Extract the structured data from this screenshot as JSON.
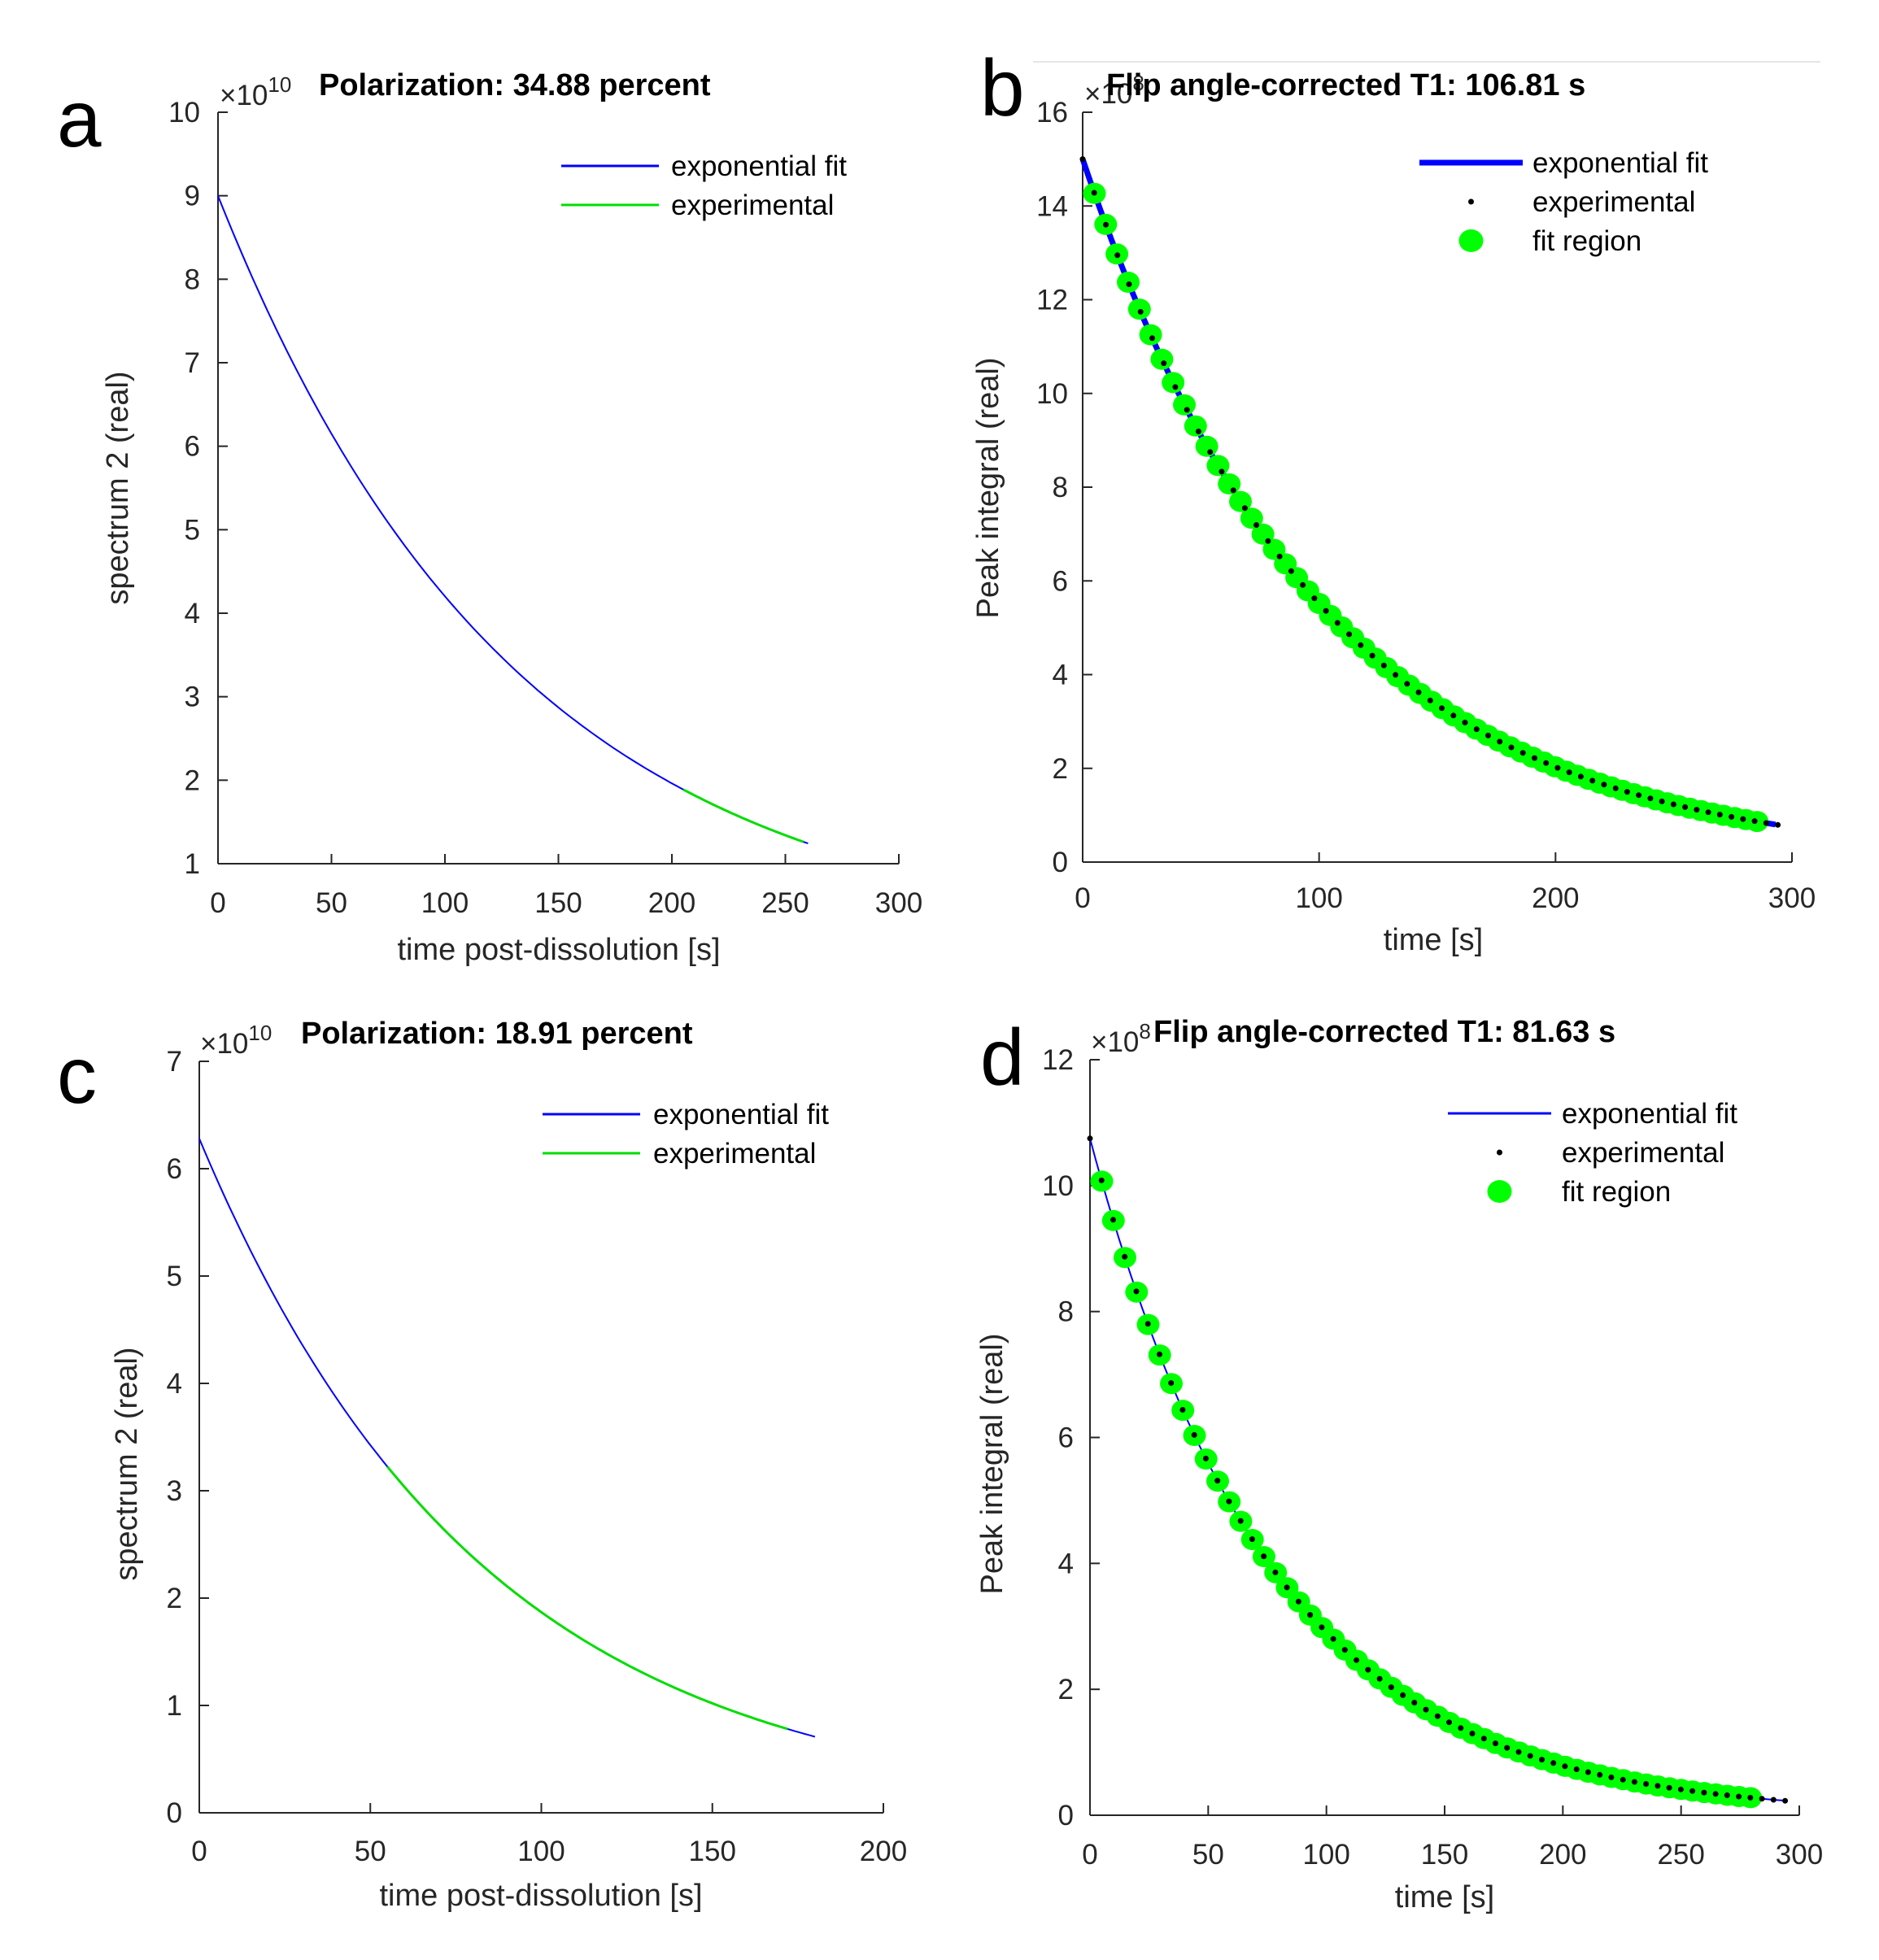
{
  "colors": {
    "fit": "#0000ff",
    "experimental": "#00dd00",
    "fit_region": "#00ff00",
    "dots": "#000000",
    "axis": "#262626"
  },
  "chart_data": [
    {
      "panel": "a",
      "type": "line",
      "title": "Polarization: 34.88 percent",
      "xlabel": "time post-dissolution [s]",
      "ylabel": "spectrum 2 (real)",
      "xlim": [
        0,
        300
      ],
      "ylim": [
        1,
        10
      ],
      "xticks": [
        "0",
        "50",
        "100",
        "150",
        "200",
        "250",
        "300"
      ],
      "yticks": [
        "1",
        "2",
        "3",
        "4",
        "5",
        "6",
        "7",
        "8",
        "9",
        "10"
      ],
      "y_exponent": "×10",
      "y_exponent_power": "10",
      "legend": [
        "exponential fit",
        "experimental"
      ],
      "model": {
        "kind": "exp",
        "a": 9.0,
        "tau": 131.3
      },
      "series": [
        {
          "name": "exponential fit",
          "style": "line",
          "x_range": [
            0,
            260
          ]
        },
        {
          "name": "experimental",
          "style": "line",
          "x_range": [
            205,
            258
          ]
        }
      ]
    },
    {
      "panel": "b",
      "type": "scatter",
      "title": "Flip angle-corrected T1: 106.81 s",
      "xlabel": "time [s]",
      "ylabel": "Peak integral (real)",
      "xlim": [
        0,
        300
      ],
      "ylim": [
        0,
        16
      ],
      "xticks": [
        "0",
        "100",
        "200",
        "300"
      ],
      "yticks": [
        "0",
        "2",
        "4",
        "6",
        "8",
        "10",
        "12",
        "14",
        "16"
      ],
      "y_exponent": "×10",
      "y_exponent_power": "8",
      "legend": [
        "exponential fit",
        "experimental",
        "fit region"
      ],
      "model": {
        "kind": "exp",
        "a": 15.0,
        "tau": 100.0
      },
      "series": [
        {
          "name": "exponential fit",
          "style": "thickline",
          "x_range": [
            0,
            293
          ]
        },
        {
          "name": "experimental",
          "style": "dots",
          "x_start": 0,
          "x_step": 4.9,
          "count": 61
        },
        {
          "name": "fit region",
          "style": "markers",
          "x_start": 5,
          "x_step": 4.75,
          "count": 60
        }
      ]
    },
    {
      "panel": "c",
      "type": "line",
      "title": "Polarization: 18.91 percent",
      "xlabel": "time post-dissolution [s]",
      "ylabel": "spectrum 2 (real)",
      "xlim": [
        0,
        200
      ],
      "ylim": [
        0,
        7
      ],
      "xticks": [
        "0",
        "50",
        "100",
        "150",
        "200"
      ],
      "yticks": [
        "0",
        "1",
        "2",
        "3",
        "4",
        "5",
        "6",
        "7"
      ],
      "y_exponent": "×10",
      "y_exponent_power": "10",
      "legend": [
        "exponential fit",
        "experimental"
      ],
      "model": {
        "kind": "exp",
        "a": 6.28,
        "tau": 82.5
      },
      "series": [
        {
          "name": "exponential fit",
          "style": "line",
          "x_range": [
            0,
            180
          ]
        },
        {
          "name": "experimental",
          "style": "line",
          "x_range": [
            55,
            172
          ]
        }
      ]
    },
    {
      "panel": "d",
      "type": "scatter",
      "title": "Flip angle-corrected T1: 81.63 s",
      "xlabel": "time [s]",
      "ylabel": "Peak integral (real)",
      "xlim": [
        0,
        300
      ],
      "ylim": [
        0,
        12
      ],
      "xticks": [
        "0",
        "50",
        "100",
        "150",
        "200",
        "250",
        "300"
      ],
      "yticks": [
        "0",
        "2",
        "4",
        "6",
        "8",
        "10",
        "12"
      ],
      "y_exponent": "×10",
      "y_exponent_power": "8",
      "legend": [
        "exponential fit",
        "experimental",
        "fit region"
      ],
      "model": {
        "kind": "exp",
        "a": 10.75,
        "tau": 76.5
      },
      "series": [
        {
          "name": "exponential fit",
          "style": "line",
          "x_range": [
            0,
            295
          ]
        },
        {
          "name": "experimental",
          "style": "dots",
          "x_start": 0,
          "x_step": 4.9,
          "count": 61
        },
        {
          "name": "fit region",
          "style": "markers",
          "x_start": 5,
          "x_step": 4.9,
          "count": 57
        }
      ]
    }
  ]
}
